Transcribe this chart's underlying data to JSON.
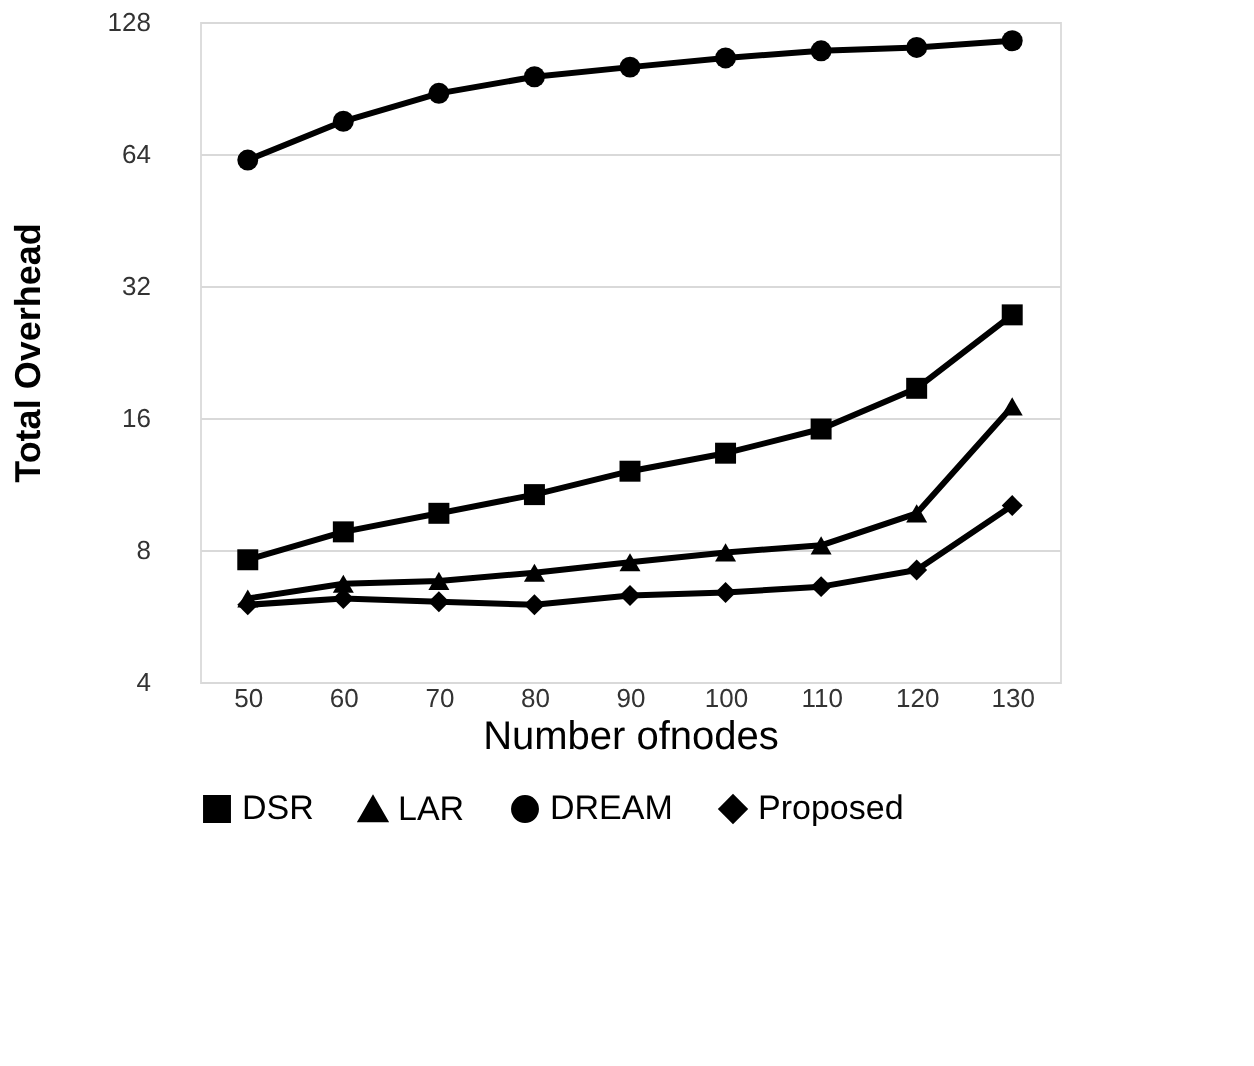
{
  "chart_data": {
    "type": "line",
    "xlabel": "Number ofnodes",
    "ylabel": "Total Overhead",
    "categories": [
      "50",
      "60",
      "70",
      "80",
      "90",
      "100",
      "110",
      "120",
      "130"
    ],
    "log": "y",
    "ylim": [
      4,
      128
    ],
    "yticks": [
      4,
      8,
      16,
      32,
      64,
      128
    ],
    "grid": "y",
    "legend": "bottom",
    "line_style": "solid",
    "series": [
      {
        "name": "DSR",
        "color": "#000000",
        "marker": "square",
        "values": [
          7.6,
          8.8,
          9.7,
          10.7,
          12.1,
          13.3,
          15.1,
          18.7,
          27.5
        ]
      },
      {
        "name": "LAR",
        "color": "#000000",
        "marker": "triangle",
        "values": [
          6.2,
          6.7,
          6.8,
          7.1,
          7.5,
          7.9,
          8.2,
          9.7,
          17
        ]
      },
      {
        "name": "DREAM",
        "color": "#000000",
        "marker": "circle",
        "values": [
          62,
          76,
          88,
          96,
          101,
          106,
          110,
          112,
          116
        ]
      },
      {
        "name": "Proposed",
        "color": "#000000",
        "marker": "diamond",
        "values": [
          6.0,
          6.2,
          6.1,
          6.0,
          6.3,
          6.4,
          6.6,
          7.2,
          10.1
        ]
      }
    ]
  }
}
